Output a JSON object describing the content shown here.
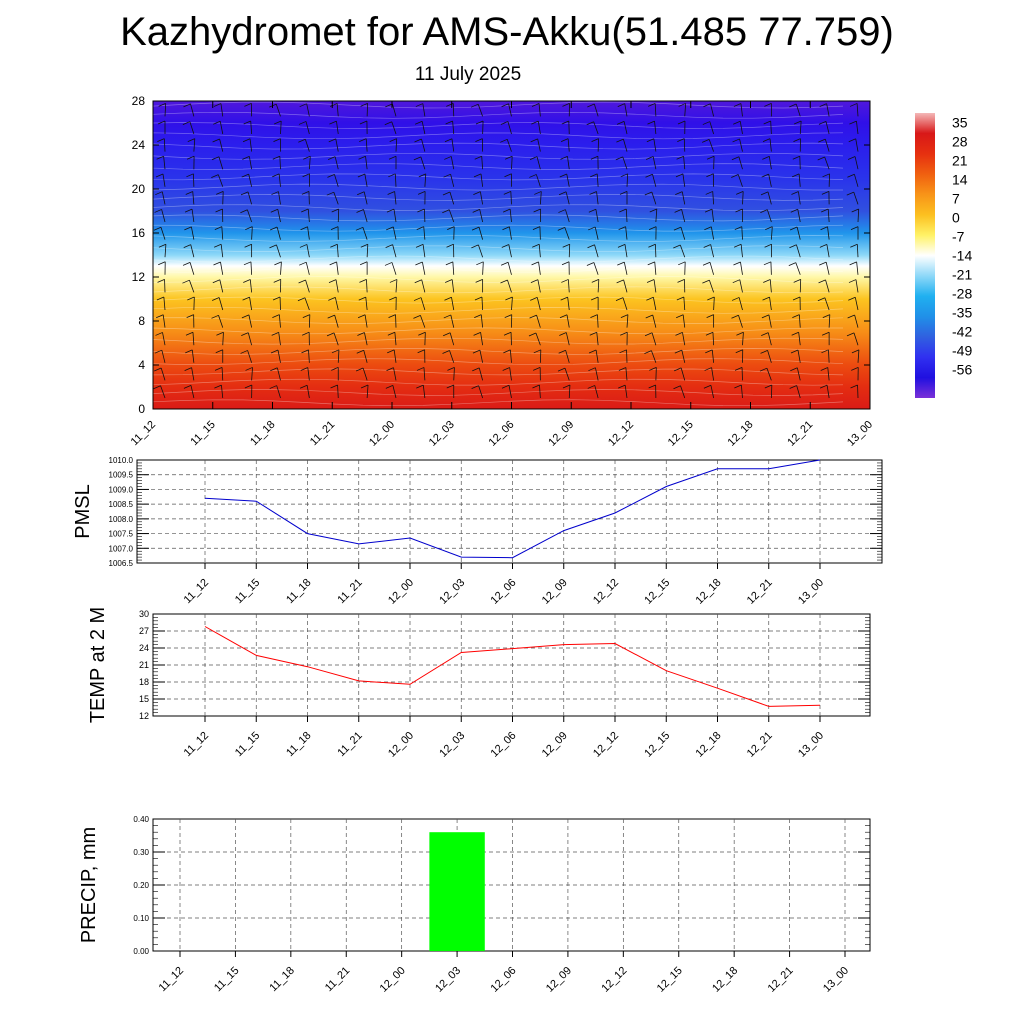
{
  "header": {
    "title": "Kazhydromet for AMS-Akku(51.485 77.759)",
    "subtitle": "11 July 2025"
  },
  "time_labels": [
    "11_12",
    "11_15",
    "11_18",
    "11_21",
    "12_00",
    "12_03",
    "12_06",
    "12_09",
    "12_12",
    "12_15",
    "12_18",
    "12_21",
    "13_00"
  ],
  "chart_data": [
    {
      "type": "heatmap",
      "x": [
        "11_12",
        "11_15",
        "11_18",
        "11_21",
        "12_00",
        "12_03",
        "12_06",
        "12_09",
        "12_12",
        "12_15",
        "12_18",
        "12_21",
        "13_00"
      ],
      "y_ticks": [
        0,
        4,
        8,
        12,
        16,
        20,
        24,
        28
      ],
      "ylim": [
        0,
        28
      ],
      "colorbar": {
        "labels": [
          "35",
          "28",
          "21",
          "14",
          "7",
          "0",
          "-7",
          "-14",
          "-21",
          "-28",
          "-35",
          "-42",
          "-49",
          "-56"
        ],
        "colors": [
          "#f4b8b8",
          "#d81818",
          "#e63010",
          "#f06010",
          "#f89418",
          "#fcc020",
          "#fff266",
          "#ffffff",
          "#8ed8f8",
          "#20b0f0",
          "#2090e8",
          "#3060e0",
          "#3030f0",
          "#2010e0",
          "#7a30d8"
        ]
      },
      "temperature_profile": [
        {
          "y": 0,
          "t": 27
        },
        {
          "y": 2,
          "t": 22
        },
        {
          "y": 4,
          "t": 17
        },
        {
          "y": 7,
          "t": 8
        },
        {
          "y": 10,
          "t": 0
        },
        {
          "y": 12,
          "t": -10
        },
        {
          "y": 13,
          "t": -14
        },
        {
          "y": 14,
          "t": -21
        },
        {
          "y": 16,
          "t": -32
        },
        {
          "y": 18,
          "t": -42
        },
        {
          "y": 21,
          "t": -47
        },
        {
          "y": 24,
          "t": -52
        },
        {
          "y": 26,
          "t": -56
        },
        {
          "y": 28,
          "t": -58
        }
      ]
    },
    {
      "type": "line",
      "ylabel": "PMSL",
      "x": [
        "11_12",
        "11_15",
        "11_18",
        "11_21",
        "12_00",
        "12_03",
        "12_06",
        "12_09",
        "12_12",
        "12_15",
        "12_18",
        "12_21",
        "13_00"
      ],
      "series": [
        {
          "values": [
            1008.7,
            1008.6,
            1007.5,
            1007.15,
            1007.35,
            1006.7,
            1006.68,
            1007.6,
            1008.2,
            1009.1,
            1009.7,
            1009.7,
            1010.0
          ],
          "color": "#0000cc"
        }
      ],
      "ylim": [
        1006.5,
        1010.0
      ],
      "y_ticks": [
        "1006.5",
        "1007.0",
        "1007.5",
        "1008.0",
        "1008.5",
        "1009.0",
        "1009.5",
        "1010.0"
      ]
    },
    {
      "type": "line",
      "ylabel": "TEMP at 2 M",
      "x": [
        "11_12",
        "11_15",
        "11_18",
        "11_21",
        "12_00",
        "12_03",
        "12_06",
        "12_09",
        "12_12",
        "12_15",
        "12_18",
        "12_21",
        "13_00"
      ],
      "series": [
        {
          "values": [
            27.8,
            22.7,
            20.7,
            18.2,
            17.6,
            23.2,
            23.9,
            24.6,
            24.8,
            20.0,
            16.9,
            13.7,
            13.9
          ],
          "color": "#ff0000"
        }
      ],
      "ylim": [
        12,
        30
      ],
      "y_ticks": [
        "12",
        "15",
        "18",
        "21",
        "24",
        "27",
        "30"
      ]
    },
    {
      "type": "bar",
      "ylabel": "PRECIP, mm",
      "categories": [
        "11_12",
        "11_15",
        "11_18",
        "11_21",
        "12_00",
        "12_03",
        "12_06",
        "12_09",
        "12_12",
        "12_15",
        "12_18",
        "12_21",
        "13_00"
      ],
      "values": [
        0,
        0,
        0,
        0,
        0,
        0.36,
        0,
        0,
        0,
        0,
        0,
        0,
        0
      ],
      "color": "#00ff00",
      "ylim": [
        0,
        0.4
      ],
      "y_ticks": [
        "0.00",
        "0.10",
        "0.20",
        "0.30",
        "0.40"
      ]
    }
  ]
}
